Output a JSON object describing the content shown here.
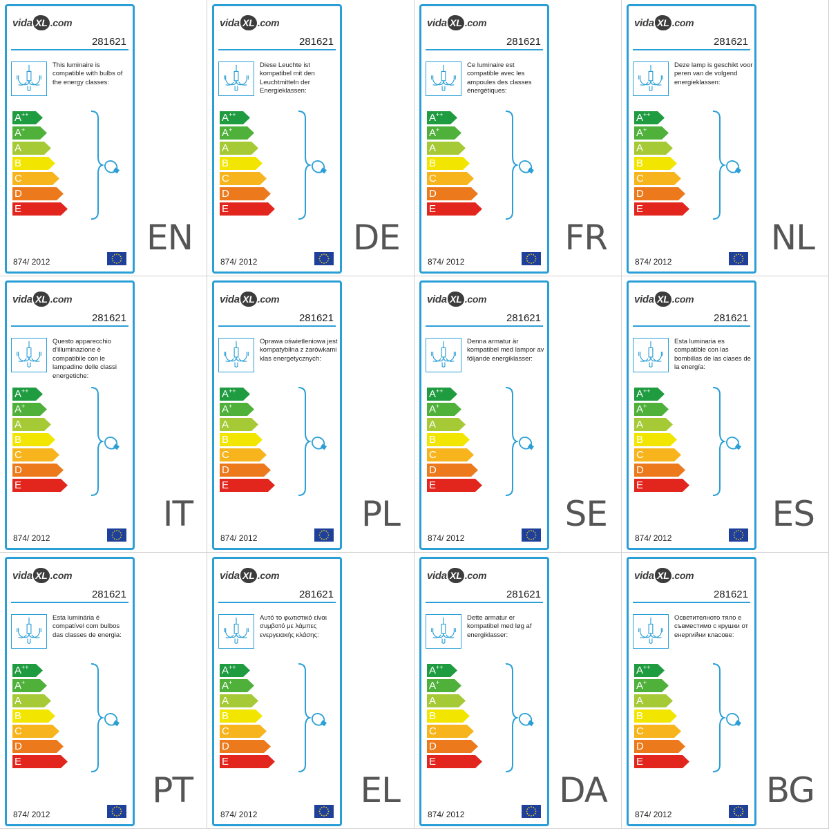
{
  "brand": {
    "logo_prefix": "vida",
    "logo_mark": "XL",
    "logo_suffix": ".com"
  },
  "product_code": "281621",
  "regulation": "874/ 2012",
  "energy_classes": [
    {
      "letter": "A",
      "sup": "++",
      "color": "#1f9b40",
      "width": 34
    },
    {
      "letter": "A",
      "sup": "+",
      "color": "#4fb03a",
      "width": 40
    },
    {
      "letter": "A",
      "sup": "",
      "color": "#a6c936",
      "width": 46
    },
    {
      "letter": "B",
      "sup": "",
      "color": "#f2e600",
      "width": 52
    },
    {
      "letter": "C",
      "sup": "",
      "color": "#f7b41c",
      "width": 58
    },
    {
      "letter": "D",
      "sup": "",
      "color": "#ec7a1c",
      "width": 64
    },
    {
      "letter": "E",
      "sup": "",
      "color": "#e2261e",
      "width": 70
    }
  ],
  "accent_color": "#2a9fd6",
  "labels": [
    {
      "lang": "EN",
      "text": "This luminaire is compatible with bulbs of the energy classes:"
    },
    {
      "lang": "DE",
      "text": "Diese Leuchte ist kompatibel mit den Leuchtmitteln der Energieklassen:"
    },
    {
      "lang": "FR",
      "text": "Ce luminaire est compatible avec les ampoules des classes énergétiques:"
    },
    {
      "lang": "NL",
      "text": "Deze lamp is geschikt voor peren van de volgend energieklassen:"
    },
    {
      "lang": "IT",
      "text": "Questo apparecchio d'illuminazione è compatibile con le lampadine delle classi energetiche:"
    },
    {
      "lang": "PL",
      "text": "Oprawa oświetleniowa jest kompatybilna z żarówkami klas energetycznych:"
    },
    {
      "lang": "SE",
      "text": "Denna armatur är kompatibel med lampor av följande energiklasser:"
    },
    {
      "lang": "ES",
      "text": "Esta luminaria es compatible con las bombillas de las clases de la energía:"
    },
    {
      "lang": "PT",
      "text": "Esta luminária é compatível com bulbos das classes de energia:"
    },
    {
      "lang": "EL",
      "text": "Αυτό το φωτιστικό είναι συμβατό με λάμπες ενεργειακής κλάσης:"
    },
    {
      "lang": "DA",
      "text": "Dette armatur er kompatibel med løg af energiklasser:"
    },
    {
      "lang": "BG",
      "text": "Осветителното тяло е съвместимо с крушки от енергийни класове:"
    }
  ]
}
